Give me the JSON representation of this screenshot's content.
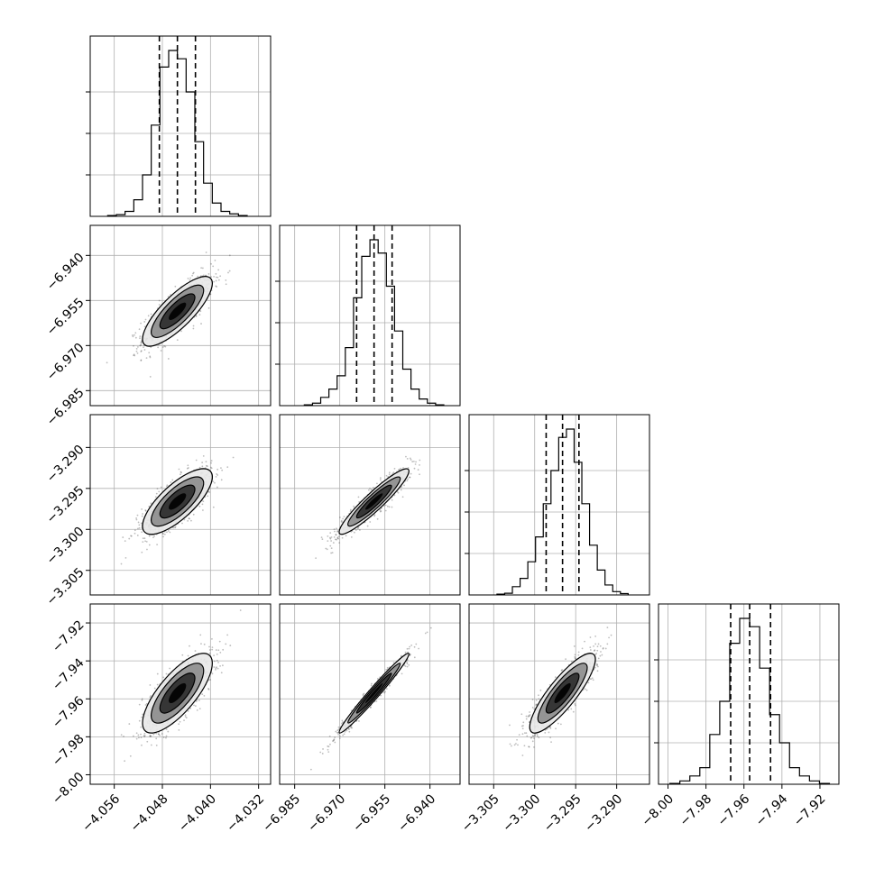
{
  "chart_data": {
    "type": "scatter",
    "grid": true,
    "params": [
      {
        "range": [
          -4.06,
          -4.03
        ],
        "ticks": [
          "−4.056",
          "−4.048",
          "−4.040",
          "−4.032"
        ],
        "tick_values": [
          -4.056,
          -4.048,
          -4.04,
          -4.032
        ],
        "quantiles": [
          -4.0485,
          -4.0455,
          -4.0425
        ],
        "median": -4.0455,
        "sigma": 0.0029
      },
      {
        "range": [
          -6.99,
          -6.93
        ],
        "ticks": [
          "−6.940",
          "−6.955",
          "−6.970",
          "−6.985"
        ],
        "tick_values": [
          -6.94,
          -6.955,
          -6.97,
          -6.985
        ],
        "x_ticks": [
          "−6.985",
          "−6.970",
          "−6.955",
          "−6.940"
        ],
        "quantiles": [
          -6.9644,
          -6.9586,
          -6.9526
        ],
        "median": -6.9586,
        "sigma": 0.0058
      },
      {
        "range": [
          -3.308,
          -3.286
        ],
        "ticks": [
          "−3.290",
          "−3.295",
          "−3.300",
          "−3.305"
        ],
        "tick_values": [
          -3.29,
          -3.295,
          -3.3,
          -3.305
        ],
        "x_ticks": [
          "−3.305",
          "−3.300",
          "−3.295",
          "−3.290"
        ],
        "quantiles": [
          -3.2986,
          -3.2966,
          -3.2946
        ],
        "median": -3.2966,
        "sigma": 0.002
      },
      {
        "range": [
          -8.005,
          -7.91
        ],
        "ticks": [
          "−7.92",
          "−7.94",
          "−7.96",
          "−7.98",
          "−8.00"
        ],
        "tick_values": [
          -7.92,
          -7.94,
          -7.96,
          -7.98,
          -8.0
        ],
        "x_ticks": [
          "−8.00",
          "−7.98",
          "−7.96",
          "−7.94",
          "−7.92"
        ],
        "quantiles": [
          -7.967,
          -7.957,
          -7.946
        ],
        "median": -7.957,
        "sigma": 0.0105
      }
    ],
    "histograms": [
      {
        "param": 0,
        "counts": [
          0.005,
          0.01,
          0.03,
          0.1,
          0.25,
          0.55,
          0.9,
          1.0,
          0.95,
          0.75,
          0.45,
          0.2,
          0.08,
          0.03,
          0.015,
          0.005
        ]
      },
      {
        "param": 1,
        "counts": [
          0.005,
          0.015,
          0.05,
          0.1,
          0.18,
          0.35,
          0.65,
          0.9,
          1.0,
          0.92,
          0.72,
          0.45,
          0.22,
          0.1,
          0.04,
          0.015,
          0.005
        ]
      },
      {
        "param": 2,
        "counts": [
          0.005,
          0.01,
          0.05,
          0.1,
          0.2,
          0.35,
          0.55,
          0.75,
          0.95,
          1.0,
          0.8,
          0.55,
          0.3,
          0.15,
          0.06,
          0.02,
          0.008
        ]
      },
      {
        "param": 3,
        "counts": [
          0.005,
          0.02,
          0.05,
          0.1,
          0.3,
          0.5,
          0.85,
          1.0,
          0.95,
          0.7,
          0.42,
          0.25,
          0.1,
          0.05,
          0.02,
          0.005
        ]
      }
    ],
    "correlations": [
      {
        "x": 0,
        "y": 1,
        "rho": 0.8
      },
      {
        "x": 0,
        "y": 2,
        "rho": 0.75
      },
      {
        "x": 0,
        "y": 3,
        "rho": 0.75
      },
      {
        "x": 1,
        "y": 2,
        "rho": 0.93
      },
      {
        "x": 1,
        "y": 3,
        "rho": 0.98
      },
      {
        "x": 2,
        "y": 3,
        "rho": 0.85
      }
    ],
    "colors": {
      "frame": "#000000",
      "grid": "#b0b0b0",
      "points": "#444444",
      "fill_light": "#e8e8e8",
      "fill_mid": "#8c8c8c",
      "fill_dark": "#2b2b2b",
      "fill_core": "#000000"
    }
  }
}
